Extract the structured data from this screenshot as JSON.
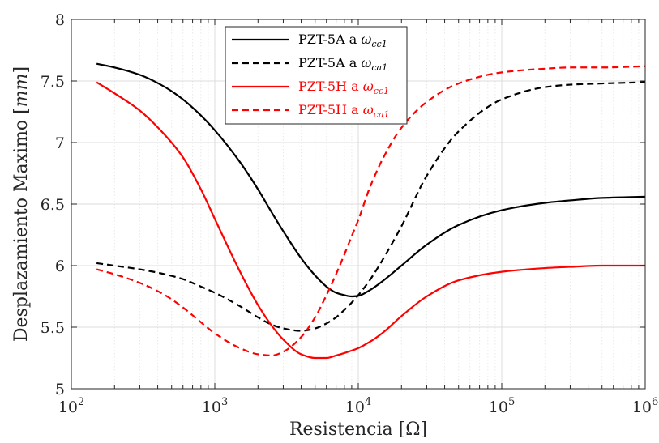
{
  "chart_data": {
    "type": "line",
    "xlabel": "Resistencia [Ω]",
    "ylabel": "Desplazamiento Maximo [mm]",
    "ylabel_parts": {
      "text": "Desplazamiento Maximo ",
      "unit": "mm"
    },
    "xscale": "log",
    "xlim": [
      100,
      1000000
    ],
    "ylim": [
      5,
      8
    ],
    "grid": true,
    "legend_position": "top-center",
    "x_ticks": [
      {
        "base": "10",
        "exp": "2"
      },
      {
        "base": "10",
        "exp": "3"
      },
      {
        "base": "10",
        "exp": "4"
      },
      {
        "base": "10",
        "exp": "5"
      },
      {
        "base": "10",
        "exp": "6"
      }
    ],
    "y_ticks": [
      "5",
      "5.5",
      "6",
      "6.5",
      "7",
      "7.5",
      "8"
    ],
    "x": [
      150,
      200,
      300,
      450,
      600,
      800,
      1000,
      1500,
      2000,
      2500,
      3000,
      4000,
      5000,
      6000,
      7000,
      8000,
      9000,
      10000,
      12000,
      15000,
      20000,
      30000,
      50000,
      100000,
      200000,
      300000,
      500000,
      1000000
    ],
    "series": [
      {
        "name": "PZT-5A a ωcc1",
        "legend_prefix": "PZT-5A a ",
        "legend_sym": "ω",
        "legend_sub": "cc1",
        "color": "#000000",
        "dash": "solid",
        "values": [
          7.64,
          7.61,
          7.55,
          7.45,
          7.35,
          7.22,
          7.1,
          6.84,
          6.62,
          6.43,
          6.28,
          6.06,
          5.92,
          5.83,
          5.78,
          5.76,
          5.75,
          5.755,
          5.8,
          5.88,
          6.0,
          6.17,
          6.33,
          6.45,
          6.51,
          6.53,
          6.55,
          6.56
        ]
      },
      {
        "name": "PZT-5A a ωca1",
        "legend_prefix": "PZT-5A a ",
        "legend_sym": "ω",
        "legend_sub": "ca1",
        "color": "#000000",
        "dash": "dashed",
        "values": [
          6.02,
          6.0,
          5.97,
          5.93,
          5.89,
          5.83,
          5.78,
          5.67,
          5.58,
          5.52,
          5.49,
          5.47,
          5.49,
          5.53,
          5.58,
          5.64,
          5.7,
          5.76,
          5.88,
          6.06,
          6.32,
          6.73,
          7.09,
          7.35,
          7.45,
          7.47,
          7.48,
          7.49
        ]
      },
      {
        "name": "PZT-5H a ωcc1",
        "legend_prefix": "PZT-5H a ",
        "legend_sym": "ω",
        "legend_sub": "cc1",
        "color": "#ff0000",
        "dash": "solid",
        "values": [
          7.49,
          7.4,
          7.26,
          7.06,
          6.88,
          6.62,
          6.38,
          5.95,
          5.68,
          5.51,
          5.4,
          5.28,
          5.25,
          5.25,
          5.27,
          5.29,
          5.31,
          5.33,
          5.38,
          5.46,
          5.59,
          5.75,
          5.88,
          5.95,
          5.98,
          5.99,
          6.0,
          6.0
        ]
      },
      {
        "name": "PZT-5H a ωca1",
        "legend_prefix": "PZT-5H a ",
        "legend_sym": "ω",
        "legend_sub": "ca1",
        "color": "#ff0000",
        "dash": "dashed",
        "values": [
          5.97,
          5.93,
          5.86,
          5.76,
          5.66,
          5.54,
          5.45,
          5.33,
          5.28,
          5.27,
          5.3,
          5.42,
          5.58,
          5.76,
          5.93,
          6.09,
          6.24,
          6.37,
          6.63,
          6.88,
          7.12,
          7.33,
          7.48,
          7.57,
          7.6,
          7.61,
          7.61,
          7.62
        ]
      }
    ]
  }
}
